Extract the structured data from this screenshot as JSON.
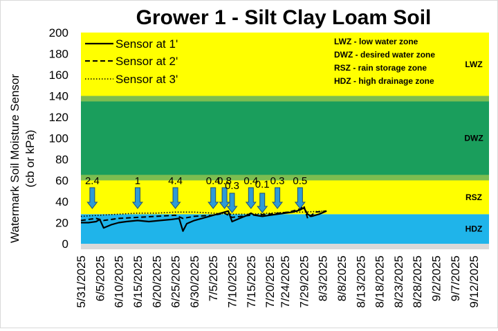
{
  "chart_data": {
    "type": "line",
    "title": "Grower 1 - Silt Clay Loam Soil",
    "ylabel_line1": "Watermark Soil Moisture Sensor",
    "ylabel_line2": "(cb or kPa)",
    "ylim": [
      0,
      200
    ],
    "yticks": [
      "0",
      "20",
      "40",
      "60",
      "80",
      "100",
      "120",
      "140",
      "160",
      "180",
      "200"
    ],
    "xlim": [
      "5/31/2025",
      "9/16/2025"
    ],
    "xticks": [
      "5/31/2025",
      "6/5/2025",
      "6/10/2025",
      "6/15/2025",
      "6/20/2025",
      "6/25/2025",
      "6/30/2025",
      "7/5/2025",
      "7/10/2025",
      "7/15/2025",
      "7/20/2025",
      "7/24/2025",
      "7/29/2025",
      "8/3/2025",
      "8/8/2025",
      "8/13/2025",
      "8/18/2025",
      "8/23/2025",
      "8/28/2025",
      "9/2/2025",
      "9/7/2025",
      "9/12/2025"
    ],
    "zones": [
      {
        "name": "HDZ",
        "from": 0,
        "to": 28,
        "color": "#1fb4ea"
      },
      {
        "name": "RSZ",
        "from": 28,
        "to": 60,
        "color": "#ffff00"
      },
      {
        "name": "DWZ",
        "from": 60,
        "to": 140,
        "color": "#1a9e5c"
      },
      {
        "name": "LWZ",
        "from": 140,
        "to": 200,
        "color": "#ffff00"
      }
    ],
    "zone_definitions": [
      "LWZ  - low water zone",
      "DWZ - desired water zone",
      "RSZ - rain storage zone",
      "HDZ - high drainage zone"
    ],
    "legend_position": "top-left",
    "series": [
      {
        "name": "Sensor at 1'",
        "style": "solid",
        "x": [
          "5/31/2025",
          "6/2/2025",
          "6/4/2025",
          "6/5/2025",
          "6/6/2025",
          "6/8/2025",
          "6/10/2025",
          "6/12/2025",
          "6/15/2025",
          "6/18/2025",
          "6/21/2025",
          "6/24/2025",
          "6/26/2025",
          "6/27/2025",
          "6/28/2025",
          "6/30/2025",
          "7/2/2025",
          "7/4/2025",
          "7/6/2025",
          "7/8/2025",
          "7/9/2025",
          "7/10/2025",
          "7/12/2025",
          "7/14/2025",
          "7/15/2025",
          "7/16/2025",
          "7/18/2025",
          "7/20/2025",
          "7/22/2025",
          "7/24/2025",
          "7/26/2025",
          "7/28/2025",
          "7/29/2025",
          "7/30/2025",
          "7/31/2025",
          "8/2/2025",
          "8/4/2025"
        ],
        "y": [
          20,
          20,
          21,
          23,
          15,
          18,
          20,
          21,
          22,
          21,
          22,
          23,
          24,
          12,
          19,
          22,
          24,
          26,
          28,
          30,
          31,
          21,
          24,
          27,
          29,
          27,
          26,
          27,
          28,
          29,
          30,
          32,
          34,
          28,
          26,
          28,
          31
        ]
      },
      {
        "name": "Sensor at 2'",
        "style": "dashed",
        "x": [
          "5/31/2025",
          "6/4/2025",
          "6/6/2025",
          "6/10/2025",
          "6/15/2025",
          "6/20/2025",
          "6/25/2025",
          "6/27/2025",
          "6/30/2025",
          "7/5/2025",
          "7/8/2025",
          "7/10/2025",
          "7/15/2025",
          "7/20/2025",
          "7/25/2025",
          "7/28/2025",
          "7/29/2025",
          "7/30/2025",
          "8/1/2025",
          "8/4/2025"
        ],
        "y": [
          22,
          24,
          22,
          24,
          25,
          26,
          27,
          24,
          26,
          27,
          29,
          25,
          27,
          28,
          30,
          33,
          36,
          24,
          30,
          31
        ]
      },
      {
        "name": "Sensor at 3'",
        "style": "dotted",
        "x": [
          "5/31/2025",
          "6/5/2025",
          "6/10/2025",
          "6/15/2025",
          "6/20/2025",
          "6/25/2025",
          "6/30/2025",
          "7/5/2025",
          "7/10/2025",
          "7/15/2025",
          "7/20/2025",
          "7/25/2025",
          "7/29/2025",
          "8/4/2025"
        ],
        "y": [
          26,
          27,
          28,
          29,
          29,
          30,
          30,
          29,
          28,
          28,
          29,
          30,
          30,
          31
        ]
      }
    ],
    "rain_events": [
      {
        "date": "6/3/2025",
        "value": "2.4"
      },
      {
        "date": "6/15/2025",
        "value": "1"
      },
      {
        "date": "6/25/2025",
        "value": "4.4"
      },
      {
        "date": "7/5/2025",
        "value": "0.4"
      },
      {
        "date": "7/8/2025",
        "value": "0.8"
      },
      {
        "date": "7/10/2025",
        "value": "0.3"
      },
      {
        "date": "7/15/2025",
        "value": "0.4"
      },
      {
        "date": "7/18/2025",
        "value": "0.1"
      },
      {
        "date": "7/22/2025",
        "value": "0.3"
      },
      {
        "date": "7/28/2025",
        "value": "0.5"
      }
    ],
    "colors": {
      "axis_bar": "#d9d9d9",
      "arrow_fill": "#2e9ad6",
      "arrow_stroke": "#1f4e79",
      "line": "#000000"
    }
  }
}
